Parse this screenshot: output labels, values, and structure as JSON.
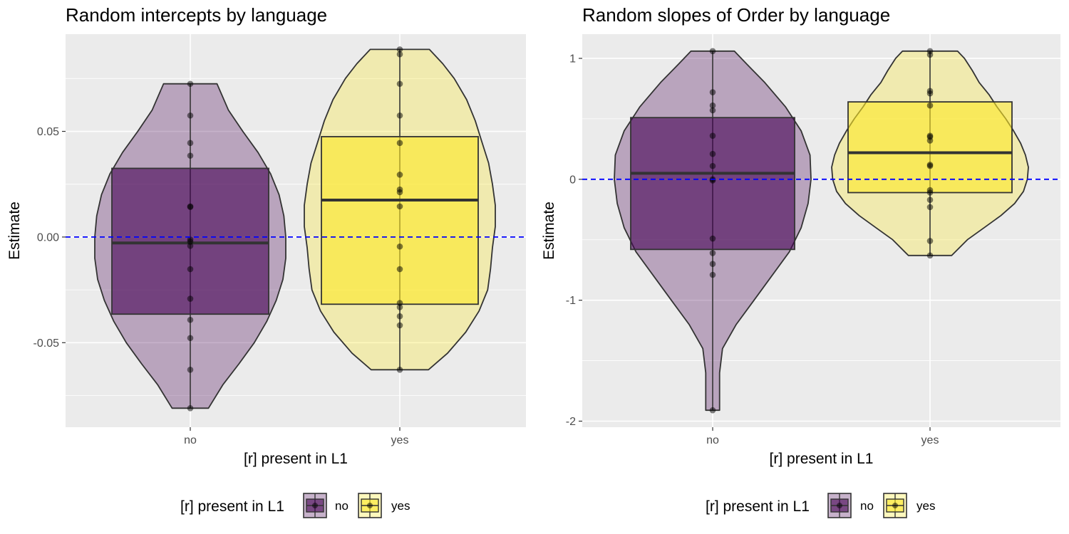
{
  "chart_data": [
    {
      "type": "violin-box",
      "title": "Random intercepts by language",
      "xlabel": "[r] present in L1",
      "ylabel": "Estimate",
      "categories": [
        "no",
        "yes"
      ],
      "ylim": [
        -0.09,
        0.096
      ],
      "y_ticks": [
        {
          "value": -0.05,
          "label": "-0.05"
        },
        {
          "value": 0.0,
          "label": "0.00"
        },
        {
          "value": 0.05,
          "label": "0.05"
        }
      ],
      "reference_line": {
        "value": 0.0,
        "color": "#0000ff",
        "style": "dashed"
      },
      "grid": true,
      "groups": [
        {
          "category": "no",
          "fill": "#440154",
          "box": {
            "q1": -0.0365,
            "median": -0.0028,
            "q3": 0.0325
          },
          "whisker": [
            -0.081,
            0.0725
          ],
          "points": [
            0.0725,
            0.0575,
            0.0445,
            0.0385,
            0.0145,
            0.0142,
            -0.0012,
            -0.0022,
            -0.0042,
            -0.0152,
            -0.0292,
            -0.0392,
            -0.0478,
            -0.0628,
            -0.081
          ],
          "violin": {
            "y": [
              -0.081,
              -0.07,
              -0.06,
              -0.05,
              -0.04,
              -0.03,
              -0.02,
              -0.01,
              0.0,
              0.01,
              0.02,
              0.03,
              0.04,
              0.05,
              0.06,
              0.0725
            ],
            "density": [
              0.19,
              0.34,
              0.51,
              0.67,
              0.8,
              0.9,
              0.97,
              1.0,
              1.0,
              0.98,
              0.93,
              0.84,
              0.71,
              0.55,
              0.4,
              0.28
            ]
          }
        },
        {
          "category": "yes",
          "fill": "#fde725",
          "box": {
            "q1": -0.0318,
            "median": 0.0175,
            "q3": 0.0475
          },
          "whisker": [
            -0.0628,
            0.0888
          ],
          "points": [
            0.0888,
            0.0865,
            0.0725,
            0.0575,
            0.0445,
            0.0295,
            0.0225,
            0.0212,
            0.0145,
            -0.0045,
            -0.0152,
            -0.0312,
            -0.0332,
            -0.0375,
            -0.0418,
            -0.0628
          ],
          "violin": {
            "y": [
              -0.0628,
              -0.055,
              -0.045,
              -0.035,
              -0.025,
              -0.015,
              -0.005,
              0.005,
              0.015,
              0.025,
              0.035,
              0.045,
              0.055,
              0.065,
              0.075,
              0.082,
              0.0888
            ],
            "density": [
              0.3,
              0.5,
              0.69,
              0.83,
              0.92,
              0.95,
              0.97,
              1.0,
              1.0,
              0.97,
              0.93,
              0.86,
              0.79,
              0.7,
              0.57,
              0.45,
              0.31
            ]
          }
        }
      ]
    },
    {
      "type": "violin-box",
      "title": "Random slopes of Order by language",
      "xlabel": "[r] present in L1",
      "ylabel": "Estimate",
      "categories": [
        "no",
        "yes"
      ],
      "ylim": [
        -2.05,
        1.2
      ],
      "y_ticks": [
        {
          "value": -2,
          "label": "-2"
        },
        {
          "value": -1,
          "label": "-1"
        },
        {
          "value": 0,
          "label": "0"
        },
        {
          "value": 1,
          "label": "1"
        }
      ],
      "reference_line": {
        "value": 0.0,
        "color": "#0000ff",
        "style": "dashed"
      },
      "grid": true,
      "groups": [
        {
          "category": "no",
          "fill": "#440154",
          "box": {
            "q1": -0.58,
            "median": 0.05,
            "q3": 0.51
          },
          "whisker": [
            -1.91,
            1.06
          ],
          "points": [
            1.06,
            0.72,
            0.61,
            0.57,
            0.36,
            0.21,
            0.11,
            0.0,
            -0.01,
            -0.49,
            -0.61,
            -0.7,
            -0.79,
            -1.91
          ],
          "violin": {
            "y": [
              -1.91,
              -1.8,
              -1.6,
              -1.4,
              -1.2,
              -1.0,
              -0.8,
              -0.6,
              -0.4,
              -0.2,
              0.0,
              0.2,
              0.4,
              0.6,
              0.8,
              0.95,
              1.06
            ],
            "density": [
              0.07,
              0.07,
              0.07,
              0.1,
              0.24,
              0.42,
              0.6,
              0.78,
              0.9,
              0.97,
              1.0,
              0.99,
              0.9,
              0.74,
              0.53,
              0.35,
              0.22
            ]
          }
        },
        {
          "category": "yes",
          "fill": "#fde725",
          "box": {
            "q1": -0.11,
            "median": 0.22,
            "q3": 0.64
          },
          "whisker": [
            -0.63,
            1.06
          ],
          "points": [
            1.06,
            1.03,
            0.73,
            0.71,
            0.61,
            0.36,
            0.35,
            0.32,
            0.12,
            0.11,
            -0.09,
            -0.11,
            -0.17,
            -0.23,
            -0.51,
            -0.63
          ],
          "violin": {
            "y": [
              -0.63,
              -0.5,
              -0.4,
              -0.3,
              -0.2,
              -0.1,
              0.0,
              0.1,
              0.2,
              0.3,
              0.4,
              0.5,
              0.6,
              0.7,
              0.8,
              0.9,
              1.0,
              1.06
            ],
            "density": [
              0.22,
              0.38,
              0.55,
              0.72,
              0.86,
              0.95,
              0.99,
              1.0,
              0.97,
              0.92,
              0.85,
              0.77,
              0.68,
              0.6,
              0.5,
              0.43,
              0.35,
              0.28
            ]
          }
        }
      ]
    }
  ],
  "legend": {
    "title": "[r] present in L1",
    "items": [
      {
        "label": "no",
        "fill": "#440154"
      },
      {
        "label": "yes",
        "fill": "#fde725"
      }
    ]
  }
}
